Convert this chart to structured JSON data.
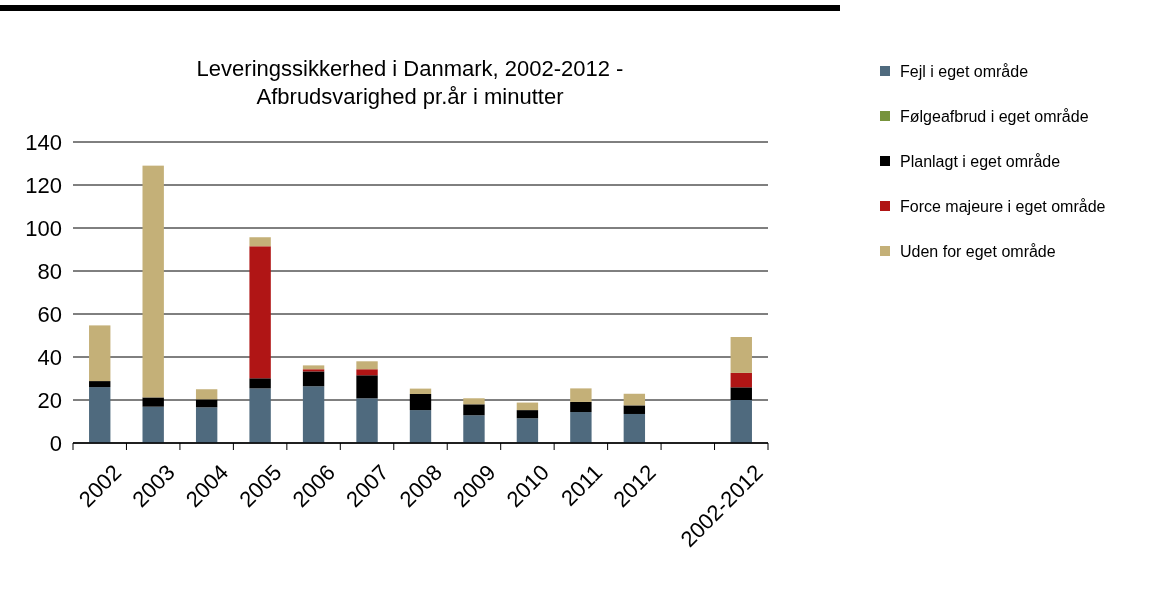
{
  "chart_data": {
    "type": "bar",
    "stacked": true,
    "title": "Leveringssikkerhed i Danmark, 2002-2012 -\nAfbrudsvarighed pr.år i minutter",
    "categories": [
      "2002",
      "2003",
      "2004",
      "2005",
      "2006",
      "2007",
      "2008",
      "2009",
      "2010",
      "2011",
      "2012",
      null,
      "2002-2012"
    ],
    "series": [
      {
        "name": "Fejl i eget område",
        "color": "#4f6a7e",
        "values": [
          26,
          16.9,
          16.6,
          25.4,
          26.4,
          20.8,
          15.3,
          12.9,
          11.5,
          14.4,
          13.5,
          null,
          20.0
        ]
      },
      {
        "name": "Følgeafbrud i eget område",
        "color": "#77933c",
        "values": [
          null,
          null,
          null,
          null,
          null,
          null,
          null,
          null,
          null,
          null,
          null,
          null,
          null
        ]
      },
      {
        "name": "Planlagt i eget område",
        "color": "#000000",
        "values": [
          2.8,
          4.3,
          3.7,
          4.7,
          6.9,
          10.7,
          7.5,
          5.1,
          3.8,
          4.7,
          4.0,
          null,
          5.9
        ]
      },
      {
        "name": "Force majeure i eget område",
        "color": "#b01515",
        "values": [
          null,
          null,
          null,
          61.4,
          1.0,
          2.8,
          null,
          null,
          null,
          null,
          null,
          null,
          6.7
        ]
      },
      {
        "name": "Uden for eget område",
        "color": "#c4b078",
        "values": [
          25.9,
          107.8,
          4.7,
          4.2,
          1.8,
          3.7,
          2.5,
          2.8,
          3.5,
          6.3,
          5.4,
          null,
          16.7
        ]
      }
    ],
    "ylim": [
      0,
      140
    ],
    "yticks": [
      0,
      20,
      40,
      60,
      80,
      100,
      120,
      140
    ],
    "grid": "y",
    "legend": "right"
  }
}
